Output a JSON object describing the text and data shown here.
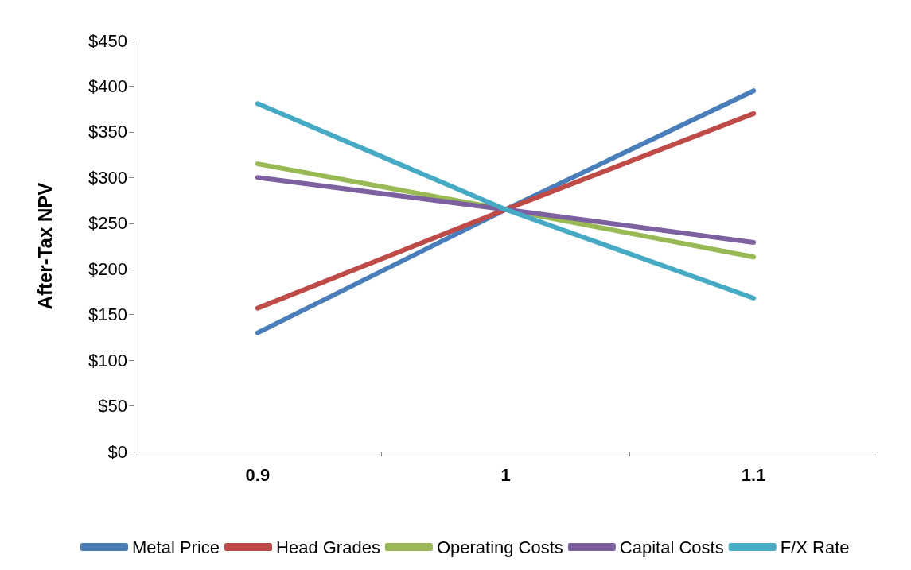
{
  "chart_data": {
    "type": "line",
    "ylabel": "After-Tax NPV",
    "categories": [
      "0.9",
      "1",
      "1.1"
    ],
    "series": [
      {
        "name": "Metal Price",
        "color": "#4a7ebb",
        "values": [
          130,
          265,
          395
        ]
      },
      {
        "name": "Head Grades",
        "color": "#be4b48",
        "values": [
          157,
          265,
          370
        ]
      },
      {
        "name": "Operating Costs",
        "color": "#98b954",
        "values": [
          315,
          265,
          213
        ]
      },
      {
        "name": "Capital Costs",
        "color": "#7d60a0",
        "values": [
          300,
          265,
          229
        ]
      },
      {
        "name": "F/X Rate",
        "color": "#46aac5",
        "values": [
          381,
          265,
          168
        ]
      }
    ],
    "ylim": [
      0,
      450
    ],
    "yticks": [
      {
        "value": 0,
        "label": "$0"
      },
      {
        "value": 50,
        "label": "$50"
      },
      {
        "value": 100,
        "label": "$100"
      },
      {
        "value": 150,
        "label": "$150"
      },
      {
        "value": 200,
        "label": "$200"
      },
      {
        "value": 250,
        "label": "$250"
      },
      {
        "value": 300,
        "label": "$300"
      },
      {
        "value": 350,
        "label": "$350"
      },
      {
        "value": 400,
        "label": "$400"
      },
      {
        "value": 450,
        "label": "$450"
      }
    ],
    "grid": false,
    "legend": "bottom",
    "marker": "none",
    "line_style": "solid"
  }
}
